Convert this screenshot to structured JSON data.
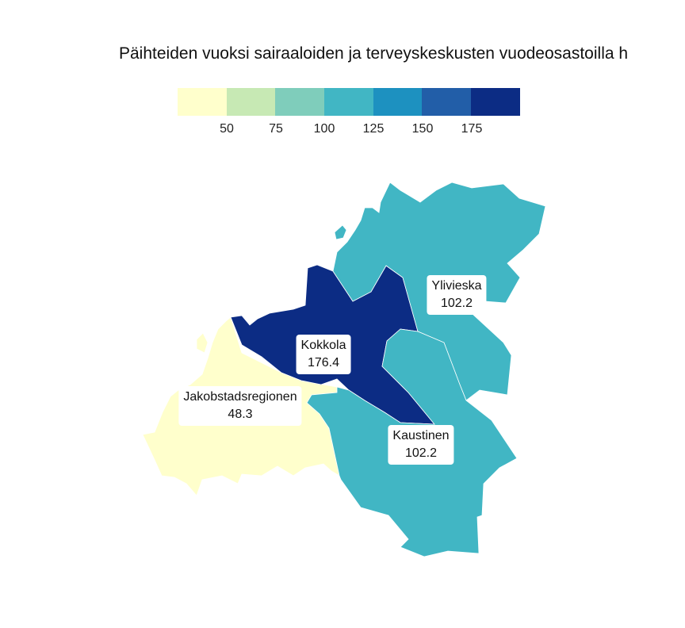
{
  "title": "Päihteiden vuoksi sairaaloiden ja terveyskeskusten vuodeosastoilla h",
  "legend": {
    "colors": [
      "#ffffcc",
      "#c7e9b4",
      "#7fcdbb",
      "#41b6c4",
      "#1d91c0",
      "#225ea8",
      "#0c2c84"
    ],
    "ticks": [
      "50",
      "75",
      "100",
      "125",
      "150",
      "175"
    ],
    "bins": [
      50,
      75,
      100,
      125,
      150,
      175
    ]
  },
  "regions": [
    {
      "name": "Kokkola",
      "value": "176.4",
      "color": "#0c2c84"
    },
    {
      "name": "Ylivieska",
      "value": "102.2",
      "color": "#41b6c4"
    },
    {
      "name": "Kaustinen",
      "value": "102.2",
      "color": "#41b6c4"
    },
    {
      "name": "Jakobstadsregionen",
      "value": "48.3",
      "color": "#ffffcc"
    }
  ]
}
